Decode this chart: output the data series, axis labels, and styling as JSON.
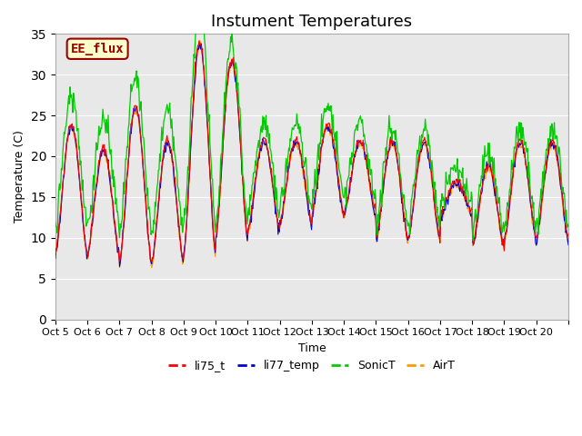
{
  "title": "Instument Temperatures",
  "xlabel": "Time",
  "ylabel": "Temperature (C)",
  "ylim": [
    0,
    35
  ],
  "yticks": [
    0,
    5,
    10,
    15,
    20,
    25,
    30,
    35
  ],
  "x_tick_positions": [
    0,
    1,
    2,
    3,
    4,
    5,
    6,
    7,
    8,
    9,
    10,
    11,
    12,
    13,
    14,
    15,
    16
  ],
  "x_labels": [
    "Oct 5",
    "Oct 6",
    "Oct 7",
    "Oct 8",
    "Oct 9",
    "Oct 10",
    "Oct 11",
    "Oct 12",
    "Oct 13",
    "Oct 14",
    "Oct 15",
    "Oct 16",
    "Oct 17",
    "Oct 18",
    "Oct 19",
    "Oct 20",
    ""
  ],
  "annotation_text": "EE_flux",
  "annotation_bg": "#ffffcc",
  "annotation_border": "#990000",
  "line_colors": {
    "li75_t": "#ff0000",
    "li77_temp": "#0000cc",
    "SonicT": "#00cc00",
    "AirT": "#ff9900"
  },
  "legend_labels": [
    "li75_t",
    "li77_temp",
    "SonicT",
    "AirT"
  ],
  "bg_color": "#e8e8e8",
  "title_fontsize": 13,
  "n_days": 16,
  "n_per_day": 48,
  "day_peaks": [
    24,
    21,
    26,
    22,
    34,
    32,
    22,
    22,
    24,
    22,
    22,
    22,
    17,
    19,
    22,
    22
  ],
  "day_mins": [
    8,
    8,
    7,
    7,
    8,
    10,
    11,
    12,
    13,
    13,
    10,
    10,
    13,
    9,
    10,
    10
  ],
  "sonic_offsets": [
    3.5,
    3.5,
    3.5,
    3.5,
    3.5,
    2.0,
    2.0,
    2.0,
    2.0,
    2.0,
    1.5,
    1.5,
    1.5,
    1.5,
    1.5,
    1.5
  ]
}
